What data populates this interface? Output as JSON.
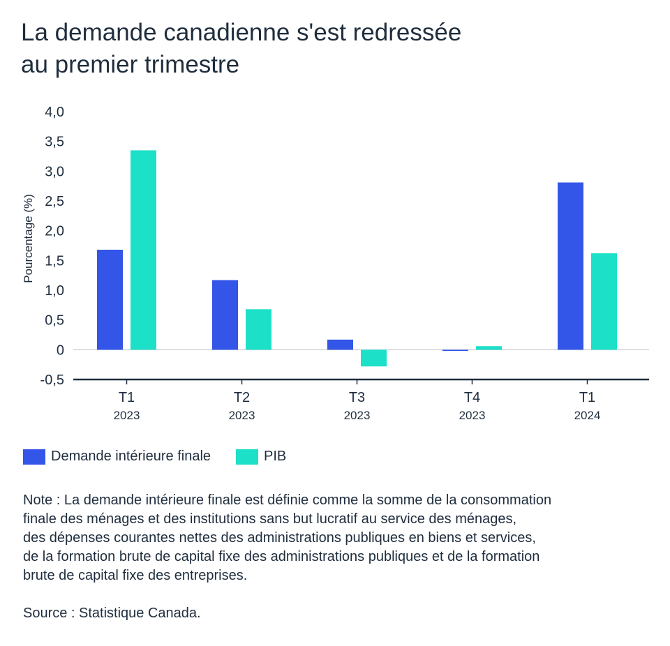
{
  "title_lines": [
    "La demande canadienne s'est redressée",
    "au premier trimestre"
  ],
  "chart_data": {
    "type": "bar",
    "ylabel": "Pourcentage (%)",
    "ylim": [
      -0.5,
      4.0
    ],
    "yticks": [
      4.0,
      3.5,
      3.0,
      2.5,
      2.0,
      1.5,
      1.0,
      0.5,
      0,
      -0.5
    ],
    "ytick_labels": [
      "4,0",
      "3,5",
      "3,0",
      "2,5",
      "2,0",
      "1,5",
      "1,0",
      "0,5",
      "0",
      "-0,5"
    ],
    "categories": [
      {
        "quarter": "T1",
        "year": "2023"
      },
      {
        "quarter": "T2",
        "year": "2023"
      },
      {
        "quarter": "T3",
        "year": "2023"
      },
      {
        "quarter": "T4",
        "year": "2023"
      },
      {
        "quarter": "T1",
        "year": "2024"
      }
    ],
    "series": [
      {
        "name": "Demande intérieure finale",
        "color": "#3355e8",
        "values": [
          1.68,
          1.17,
          0.17,
          -0.02,
          2.81
        ]
      },
      {
        "name": "PIB",
        "color": "#1de0c8",
        "values": [
          3.35,
          0.68,
          -0.28,
          0.06,
          1.62
        ]
      }
    ],
    "grid": false,
    "legend_position": "bottom-left"
  },
  "legend": [
    {
      "label": "Demande intérieure finale",
      "color": "#3355e8"
    },
    {
      "label": "PIB",
      "color": "#1de0c8"
    }
  ],
  "note": "Note : La demande intérieure finale est définie comme la somme de la consommation finale des ménages et des institutions sans but lucratif au service des ménages, des dépenses courantes nettes des administrations publiques en biens et services, de la formation brute de capital fixe des administrations publiques et de la formation brute de capital fixe des entreprises.",
  "note_lines": [
    "Note : La demande intérieure finale est définie comme la somme de la consommation",
    "finale des ménages et des institutions sans but lucratif au service des ménages,",
    "des dépenses courantes nettes des administrations publiques en biens et services,",
    "de la formation brute de capital fixe des administrations publiques et de la formation",
    "brute de capital fixe des entreprises."
  ],
  "source": "Source : Statistique Canada."
}
